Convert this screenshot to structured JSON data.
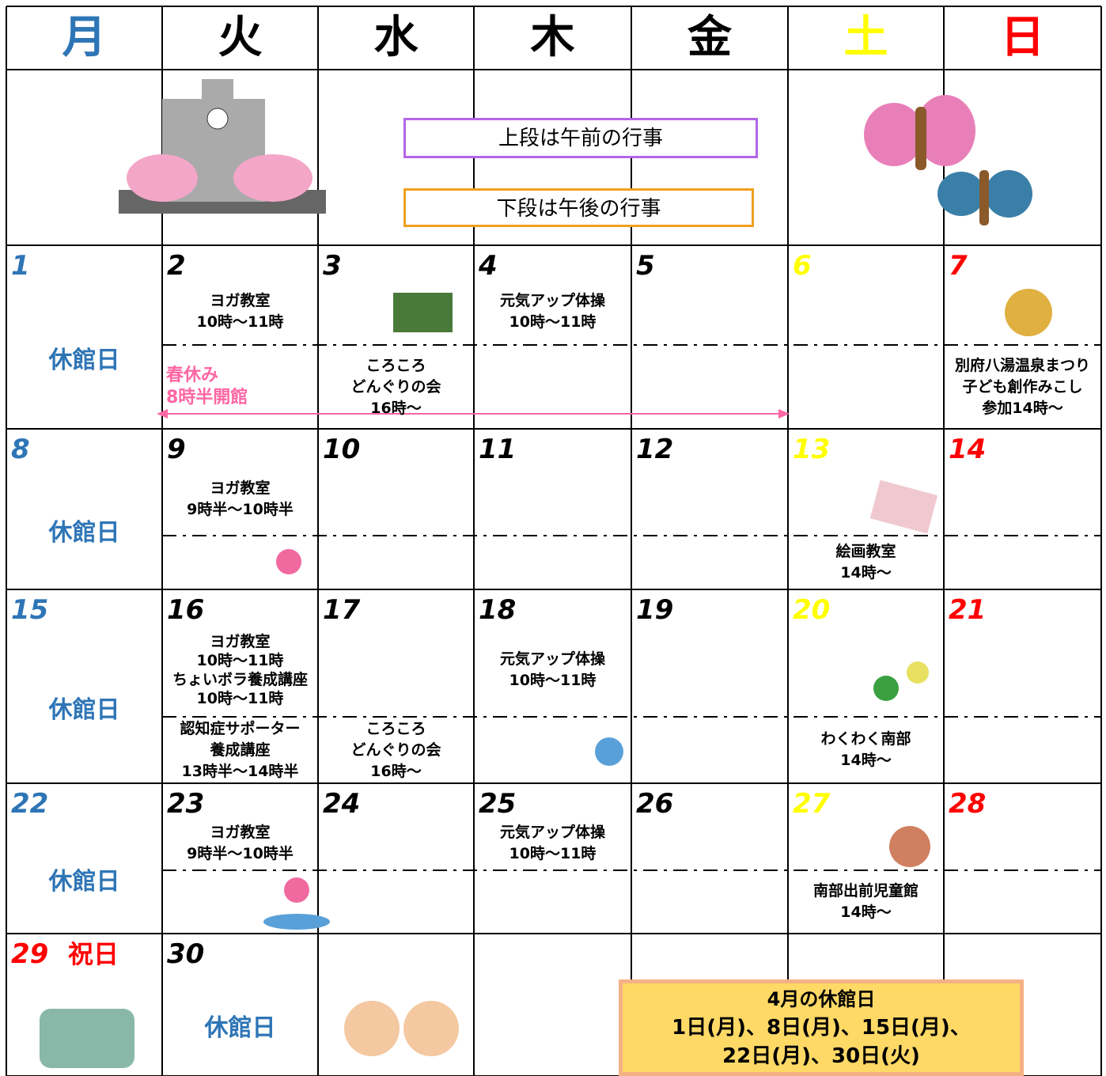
{
  "weekdays": [
    "月",
    "火",
    "水",
    "木",
    "金",
    "土",
    "日"
  ],
  "notes": [
    "上段は午前の行事",
    "下段は午後の行事"
  ],
  "spring_break": {
    "title": "春休み",
    "hours": "8時半開館"
  },
  "weeks": [
    [
      {
        "day": "1",
        "label": "休館日"
      },
      {
        "day": "2",
        "am": [
          "ヨガ教室",
          "10時～11時"
        ]
      },
      {
        "day": "3",
        "pm": [
          "ころころ",
          "どんぐりの会",
          "16時～"
        ]
      },
      {
        "day": "4",
        "am": [
          "元気アップ体操",
          "10時～11時"
        ]
      },
      {
        "day": "5"
      },
      {
        "day": "6"
      },
      {
        "day": "7",
        "pm": [
          "別府八湯温泉まつり",
          "子ども創作みこし",
          "参加14時～"
        ]
      }
    ],
    [
      {
        "day": "8",
        "label": "休館日"
      },
      {
        "day": "9",
        "am": [
          "ヨガ教室",
          "9時半～10時半"
        ]
      },
      {
        "day": "10"
      },
      {
        "day": "11"
      },
      {
        "day": "12"
      },
      {
        "day": "13",
        "pm": [
          "絵画教室",
          "14時～"
        ]
      },
      {
        "day": "14"
      }
    ],
    [
      {
        "day": "15",
        "label": "休館日"
      },
      {
        "day": "16",
        "am": [
          "ヨガ教室",
          "10時～11時",
          "ちょいボラ養成講座",
          "10時～11時"
        ],
        "pm": [
          "認知症サポーター",
          "養成講座",
          "13時半～14時半"
        ]
      },
      {
        "day": "17",
        "pm": [
          "ころころ",
          "どんぐりの会",
          "16時～"
        ]
      },
      {
        "day": "18",
        "am": [
          "元気アップ体操",
          "10時～11時"
        ]
      },
      {
        "day": "19"
      },
      {
        "day": "20",
        "pm": [
          "わくわく南部",
          "14時～"
        ]
      },
      {
        "day": "21"
      }
    ],
    [
      {
        "day": "22",
        "label": "休館日"
      },
      {
        "day": "23",
        "am": [
          "ヨガ教室",
          "9時半～10時半"
        ]
      },
      {
        "day": "24"
      },
      {
        "day": "25",
        "am": [
          "元気アップ体操",
          "10時～11時"
        ]
      },
      {
        "day": "26"
      },
      {
        "day": "27",
        "pm": [
          "南部出前児童館",
          "14時～"
        ]
      },
      {
        "day": "28"
      }
    ],
    [
      {
        "day": "29",
        "holiday": "祝日"
      },
      {
        "day": "30",
        "label": "休館日"
      },
      null,
      null,
      null,
      null,
      null
    ]
  ],
  "closed_days": {
    "title": "4月の休館日",
    "lines": [
      "1日(月)、8日(月)、15日(月)、",
      "22日(月)、30日(火)"
    ]
  }
}
